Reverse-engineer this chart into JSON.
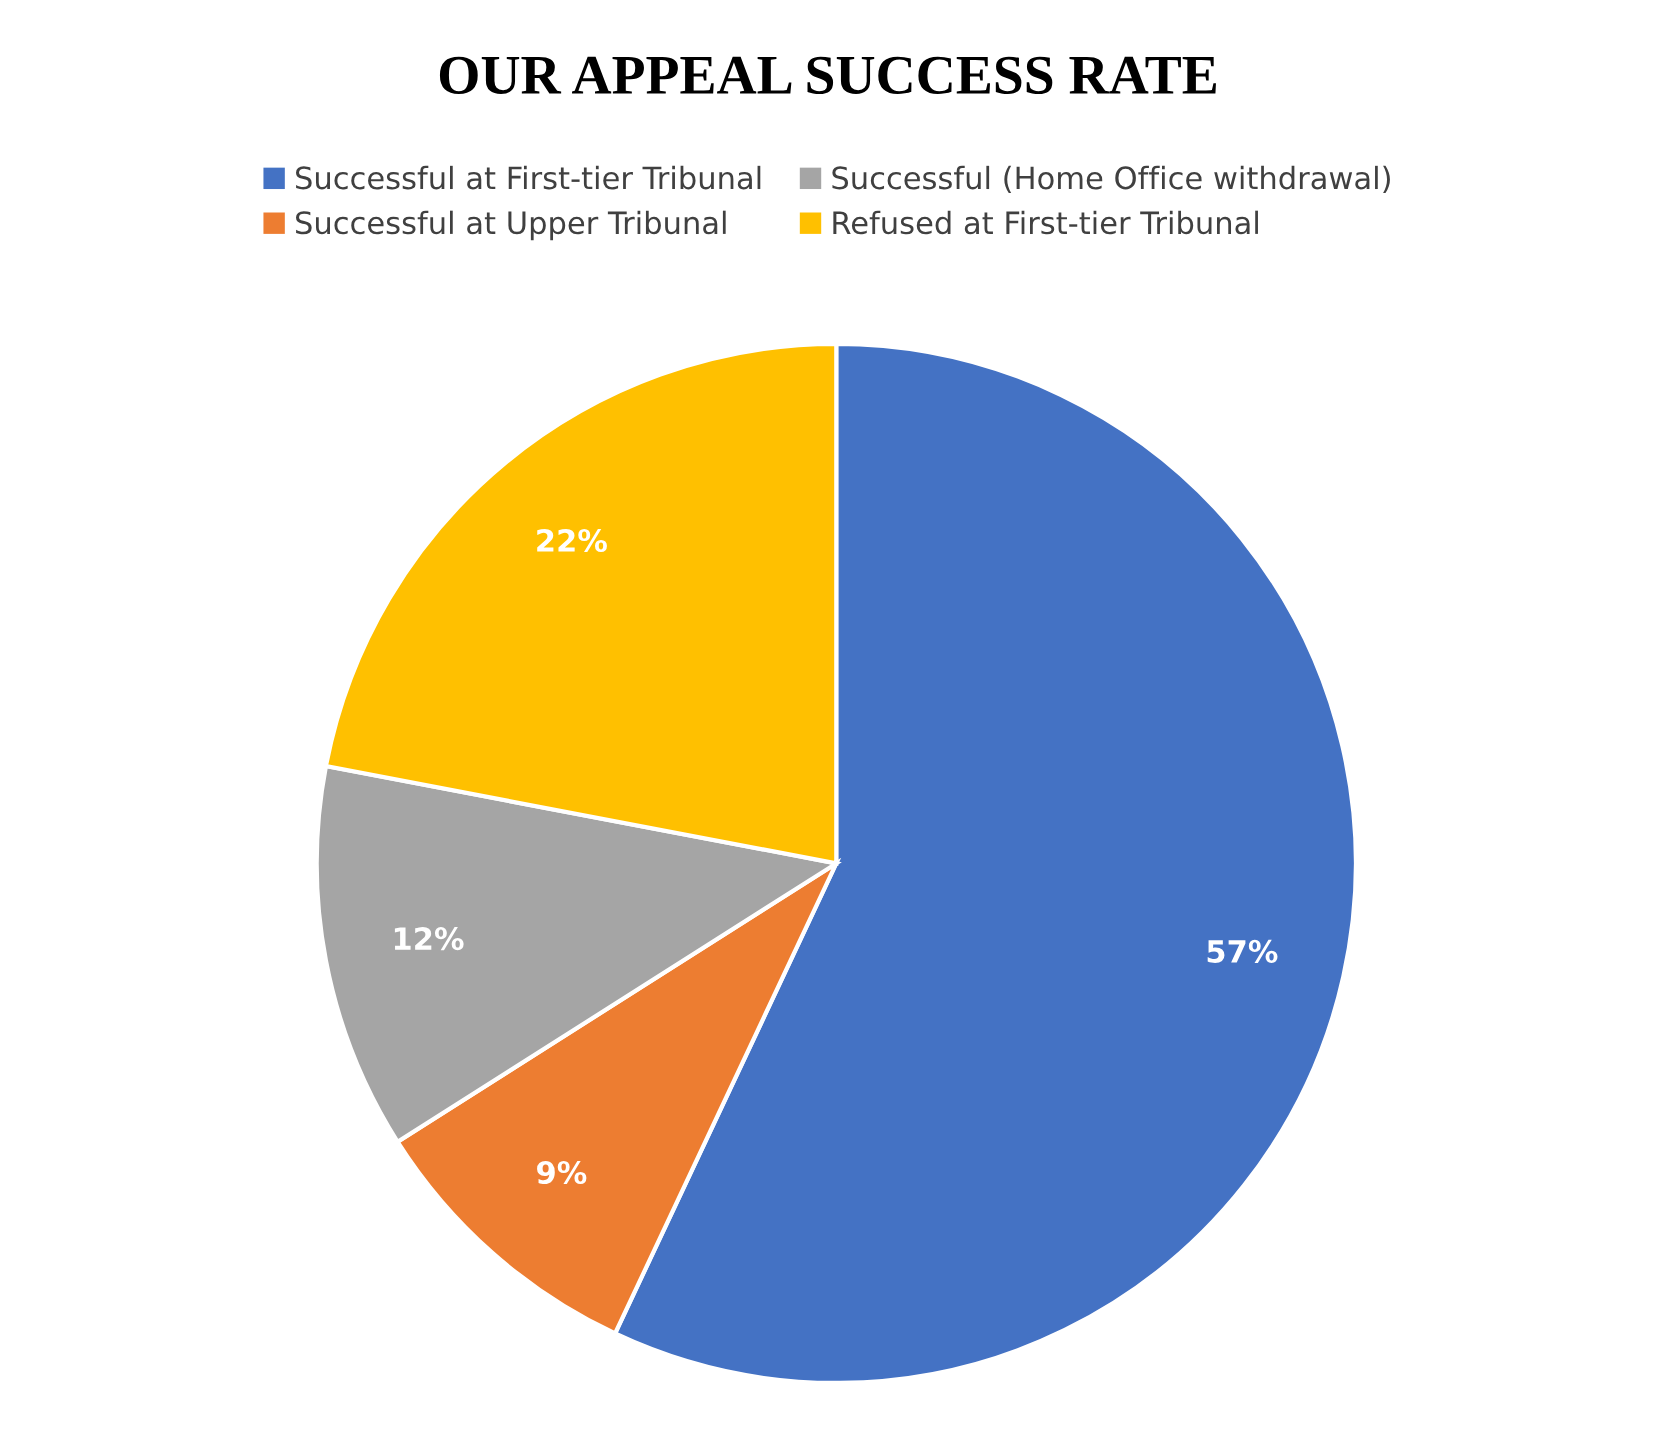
{
  "chart_data": {
    "type": "pie",
    "title": "OUR APPEAL SUCCESS RATE",
    "categories": [
      "Successful at First-tier Tribunal",
      "Successful at Upper Tribunal",
      "Successful (Home Office withdrawal)",
      "Refused at First-tier Tribunal"
    ],
    "values": [
      57,
      9,
      12,
      22
    ],
    "colors": [
      "#4472c4",
      "#ed7d31",
      "#a5a5a5",
      "#ffc000"
    ],
    "value_labels": [
      "57%",
      "9%",
      "12%",
      "22%"
    ],
    "legend": "top"
  }
}
